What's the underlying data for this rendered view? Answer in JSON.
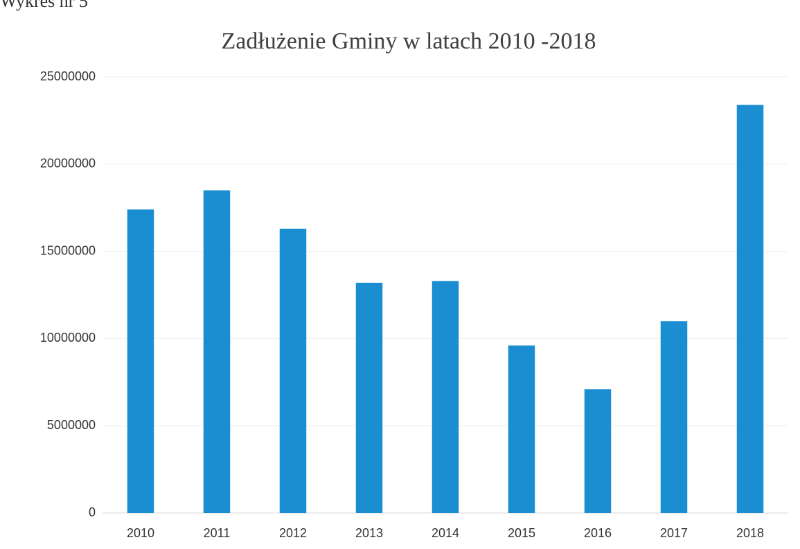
{
  "caption": "Wykres nr 5",
  "chart_data": {
    "type": "bar",
    "title": "Zadłużenie Gminy w latach 2010 -2018",
    "categories": [
      "2010",
      "2011",
      "2012",
      "2013",
      "2014",
      "2015",
      "2016",
      "2017",
      "2018"
    ],
    "values": [
      17400000,
      18500000,
      16300000,
      13200000,
      13300000,
      9600000,
      7100000,
      11000000,
      23400000
    ],
    "color": "#1b8ed1",
    "ylim": [
      0,
      25000000
    ],
    "yticks": [
      0,
      5000000,
      10000000,
      15000000,
      20000000,
      25000000
    ],
    "grid": true
  }
}
